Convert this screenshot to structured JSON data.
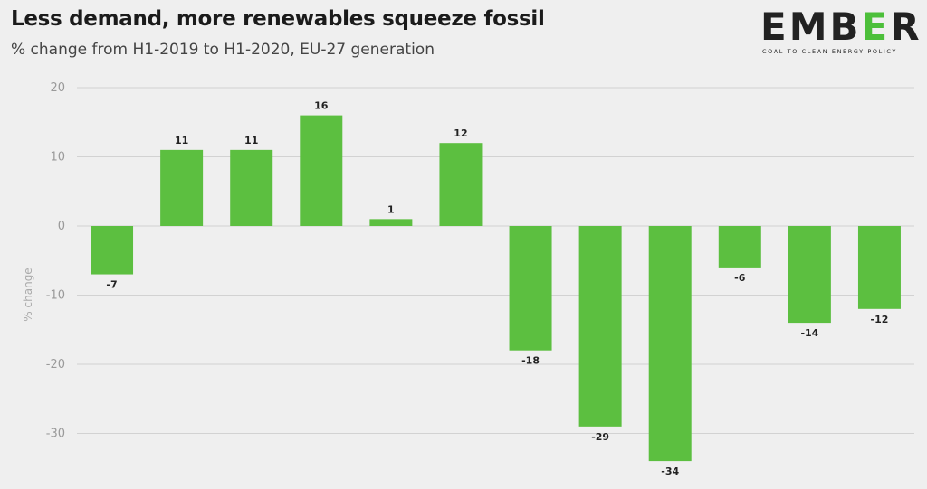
{
  "header": {
    "title": "Less demand, more renewables squeeze fossil",
    "subtitle": "% change from H1-2019 to H1-2020, EU-27 generation"
  },
  "logo": {
    "word": "EMBER",
    "tagline": "COAL TO CLEAN ENERGY POLICY",
    "accent_color": "#4cbf3a"
  },
  "chart_data": {
    "type": "bar",
    "title": "Less demand, more renewables squeeze fossil",
    "subtitle": "% change from H1-2019 to H1-2020, EU-27 generation",
    "xlabel": "",
    "ylabel": "% change",
    "values": [
      -7,
      11,
      11,
      16,
      1,
      12,
      -18,
      -29,
      -34,
      -6,
      -14,
      -12
    ],
    "data_labels": [
      "-7",
      "11",
      "11",
      "16",
      "1",
      "12",
      "-18",
      "-29",
      "-34",
      "-6",
      "-14",
      "-12"
    ],
    "yticks": [
      20,
      10,
      0,
      -10,
      -20,
      -30
    ],
    "ytick_labels": [
      "20",
      "10",
      "0",
      "-10",
      "-20",
      "-30"
    ],
    "ylim": [
      -36,
      20
    ],
    "grid": true,
    "bar_color": "#5cbf40"
  }
}
